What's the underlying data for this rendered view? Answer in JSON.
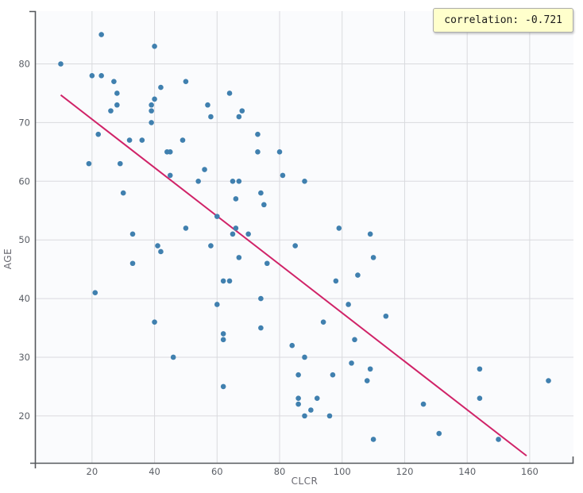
{
  "chart_data": {
    "type": "scatter",
    "title": "",
    "xlabel": "CLCR",
    "ylabel": "AGE",
    "xlim": [
      2,
      174
    ],
    "ylim": [
      12,
      89
    ],
    "x_ticks": [
      20,
      40,
      60,
      80,
      100,
      120,
      140,
      160
    ],
    "y_ticks": [
      20,
      30,
      40,
      50,
      60,
      70,
      80
    ],
    "grid": true,
    "legend": "none",
    "annotation": {
      "text": "correlation: -0.721",
      "position": "top-right"
    },
    "regression_line": {
      "x1": 10,
      "y1": 74.7,
      "x2": 159,
      "y2": 13.2
    },
    "points": [
      [
        10,
        80
      ],
      [
        23,
        85
      ],
      [
        40,
        83
      ],
      [
        20,
        78
      ],
      [
        23,
        78
      ],
      [
        27,
        77
      ],
      [
        50,
        77
      ],
      [
        42,
        76
      ],
      [
        28,
        75
      ],
      [
        64,
        75
      ],
      [
        40,
        74
      ],
      [
        28,
        73
      ],
      [
        39,
        73
      ],
      [
        57,
        73
      ],
      [
        26,
        72
      ],
      [
        39,
        72
      ],
      [
        68,
        72
      ],
      [
        58,
        71
      ],
      [
        67,
        71
      ],
      [
        39,
        70
      ],
      [
        22,
        68
      ],
      [
        73,
        68
      ],
      [
        32,
        67
      ],
      [
        36,
        67
      ],
      [
        49,
        67
      ],
      [
        44,
        65
      ],
      [
        45,
        65
      ],
      [
        73,
        65
      ],
      [
        80,
        65
      ],
      [
        19,
        63
      ],
      [
        29,
        63
      ],
      [
        56,
        62
      ],
      [
        45,
        61
      ],
      [
        81,
        61
      ],
      [
        54,
        60
      ],
      [
        65,
        60
      ],
      [
        67,
        60
      ],
      [
        88,
        60
      ],
      [
        30,
        58
      ],
      [
        74,
        58
      ],
      [
        66,
        57
      ],
      [
        75,
        56
      ],
      [
        60,
        54
      ],
      [
        50,
        52
      ],
      [
        66,
        52
      ],
      [
        33,
        51
      ],
      [
        65,
        51
      ],
      [
        70,
        51
      ],
      [
        99,
        52
      ],
      [
        109,
        51
      ],
      [
        41,
        49
      ],
      [
        58,
        49
      ],
      [
        85,
        49
      ],
      [
        42,
        48
      ],
      [
        67,
        47
      ],
      [
        33,
        46
      ],
      [
        76,
        46
      ],
      [
        62,
        43
      ],
      [
        64,
        43
      ],
      [
        21,
        41
      ],
      [
        74,
        40
      ],
      [
        60,
        39
      ],
      [
        40,
        36
      ],
      [
        74,
        35
      ],
      [
        62,
        34
      ],
      [
        62,
        33
      ],
      [
        84,
        32
      ],
      [
        46,
        30
      ],
      [
        88,
        30
      ],
      [
        86,
        27
      ],
      [
        62,
        25
      ],
      [
        86,
        23
      ],
      [
        86,
        22
      ],
      [
        88,
        20
      ],
      [
        110,
        47
      ],
      [
        105,
        44
      ],
      [
        98,
        43
      ],
      [
        102,
        39
      ],
      [
        114,
        37
      ],
      [
        94,
        36
      ],
      [
        104,
        33
      ],
      [
        103,
        29
      ],
      [
        109,
        28
      ],
      [
        144,
        28
      ],
      [
        97,
        27
      ],
      [
        108,
        26
      ],
      [
        166,
        26
      ],
      [
        92,
        23
      ],
      [
        144,
        23
      ],
      [
        126,
        22
      ],
      [
        90,
        21
      ],
      [
        96,
        20
      ],
      [
        131,
        17
      ],
      [
        110,
        16
      ],
      [
        150,
        16
      ]
    ],
    "colors": {
      "point": "#4080af",
      "line": "#d02368",
      "plot_bg": "#fafbfd",
      "grid": "#d9dade",
      "spine": "#55585c",
      "tick_text": "#5b5f66",
      "label_text": "#6a6a72",
      "annotation_bg": "#ffffcc",
      "annotation_border": "#ababab"
    }
  }
}
